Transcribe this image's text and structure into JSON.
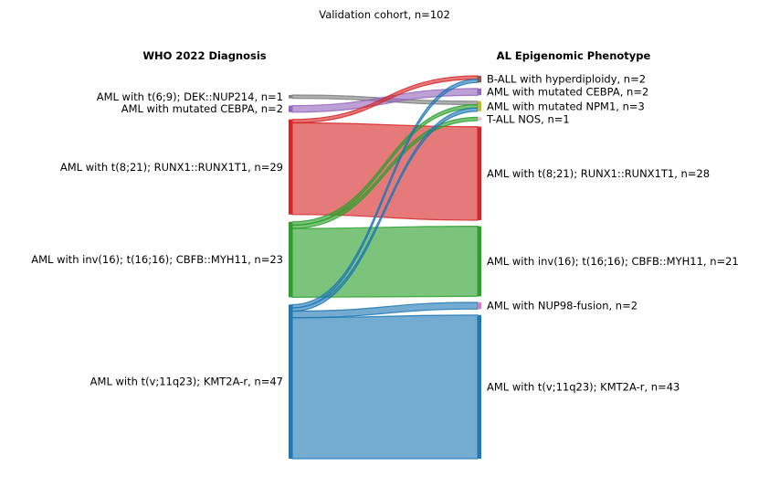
{
  "title": "Validation cohort, n=102",
  "left_header": "WHO 2022 Diagnosis",
  "right_header": "AL Epigenomic Phenotype",
  "colors": {
    "red": "#d62728",
    "green": "#2ca02c",
    "blue": "#1f77b4",
    "purple": "#9467bd",
    "gray": "#7f7f7f",
    "brown": "#8c564b",
    "olive": "#bcbd22",
    "pink": "#e377c2",
    "lightpink": "#f7b6d2"
  },
  "left_nodes": [
    {
      "id": "L_dek",
      "label": "AML with t(6;9); DEK::NUP214, n=1",
      "value": 1,
      "color": "gray"
    },
    {
      "id": "L_cebpa",
      "label": "AML with mutated CEBPA, n=2",
      "value": 2,
      "color": "purple"
    },
    {
      "id": "L_runx",
      "label": "AML with t(8;21); RUNX1::RUNX1T1, n=29",
      "value": 29,
      "color": "red"
    },
    {
      "id": "L_cbfb",
      "label": "AML with inv(16); t(16;16); CBFB::MYH11, n=23",
      "value": 23,
      "color": "green"
    },
    {
      "id": "L_kmt",
      "label": "AML with t(v;11q23); KMT2A-r, n=47",
      "value": 47,
      "color": "blue"
    }
  ],
  "right_nodes": [
    {
      "id": "R_ball",
      "label": "B-ALL with hyperdiploidy, n=2",
      "value": 2,
      "color": "brown"
    },
    {
      "id": "R_cebpa",
      "label": "AML with mutated CEBPA, n=2",
      "value": 2,
      "color": "purple"
    },
    {
      "id": "R_npm1",
      "label": "AML with mutated NPM1, n=3",
      "value": 3,
      "color": "olive"
    },
    {
      "id": "R_tall",
      "label": "T-ALL NOS, n=1",
      "value": 1,
      "color": "lightpink"
    },
    {
      "id": "R_runx",
      "label": "AML with t(8;21); RUNX1::RUNX1T1, n=28",
      "value": 28,
      "color": "red"
    },
    {
      "id": "R_cbfb",
      "label": "AML with inv(16); t(16;16); CBFB::MYH11, n=21",
      "value": 21,
      "color": "green"
    },
    {
      "id": "R_nup98",
      "label": "AML with NUP98-fusion, n=2",
      "value": 2,
      "color": "pink"
    },
    {
      "id": "R_kmt",
      "label": "AML with t(v;11q23); KMT2A-r, n=43",
      "value": 43,
      "color": "blue"
    }
  ],
  "flows": [
    {
      "source": "L_dek",
      "target": "R_npm1",
      "value": 1,
      "color": "gray"
    },
    {
      "source": "L_cebpa",
      "target": "R_cebpa",
      "value": 2,
      "color": "purple"
    },
    {
      "source": "L_runx",
      "target": "R_ball",
      "value": 1,
      "color": "red"
    },
    {
      "source": "L_runx",
      "target": "R_runx",
      "value": 28,
      "color": "red"
    },
    {
      "source": "L_cbfb",
      "target": "R_npm1",
      "value": 1,
      "color": "green"
    },
    {
      "source": "L_cbfb",
      "target": "R_tall",
      "value": 1,
      "color": "green"
    },
    {
      "source": "L_cbfb",
      "target": "R_cbfb",
      "value": 21,
      "color": "green"
    },
    {
      "source": "L_kmt",
      "target": "R_ball",
      "value": 1,
      "color": "blue"
    },
    {
      "source": "L_kmt",
      "target": "R_npm1",
      "value": 1,
      "color": "blue"
    },
    {
      "source": "L_kmt",
      "target": "R_nup98",
      "value": 2,
      "color": "blue"
    },
    {
      "source": "L_kmt",
      "target": "R_kmt",
      "value": 43,
      "color": "blue"
    }
  ]
}
